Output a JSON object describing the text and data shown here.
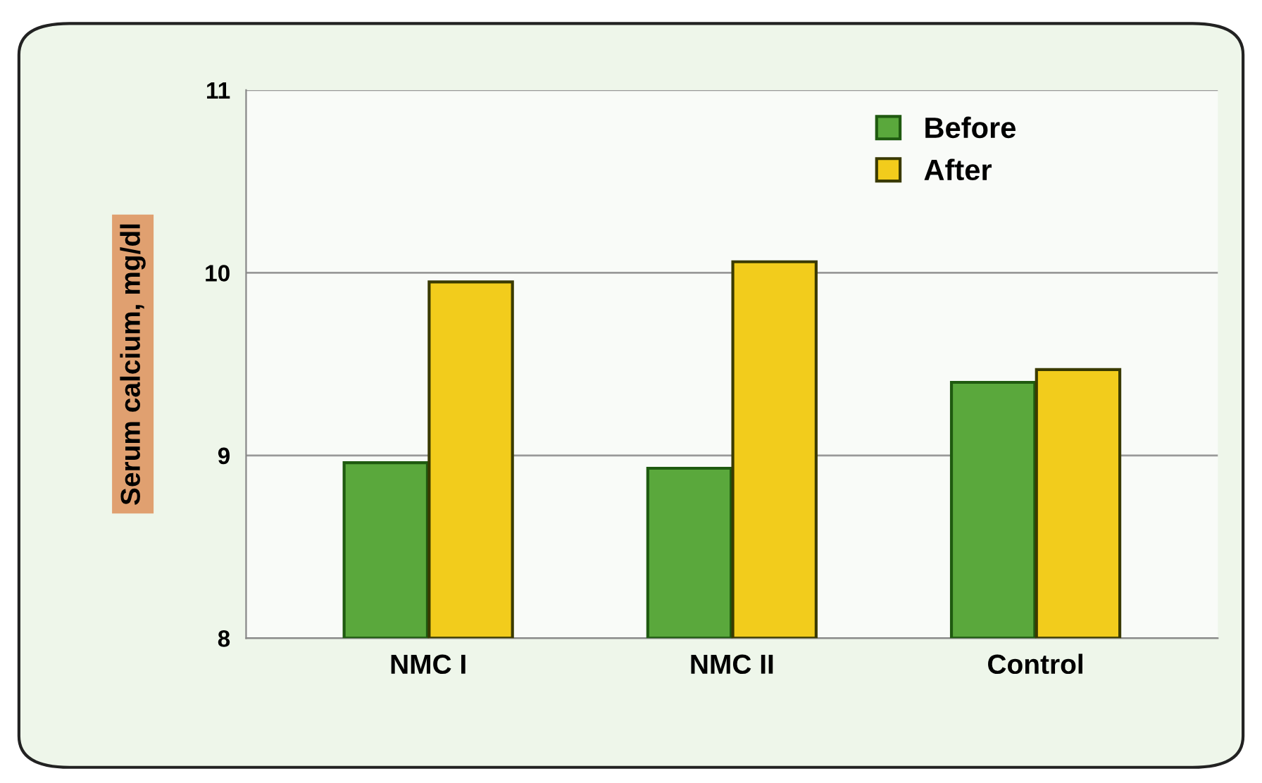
{
  "chart_data": {
    "type": "bar",
    "ylabel": "Serum calcium, mg/dl",
    "categories": [
      "NMC I",
      "NMC II",
      "Control"
    ],
    "series": [
      {
        "name": "Before",
        "color": "#5aa83c",
        "values": [
          8.96,
          8.93,
          9.4
        ]
      },
      {
        "name": "After",
        "color": "#f2cc1c",
        "values": [
          9.95,
          10.06,
          9.47
        ]
      }
    ],
    "ylim": [
      8,
      11
    ],
    "yticks": [
      8,
      9,
      10,
      11
    ],
    "grid": "y",
    "legend": "top right"
  }
}
